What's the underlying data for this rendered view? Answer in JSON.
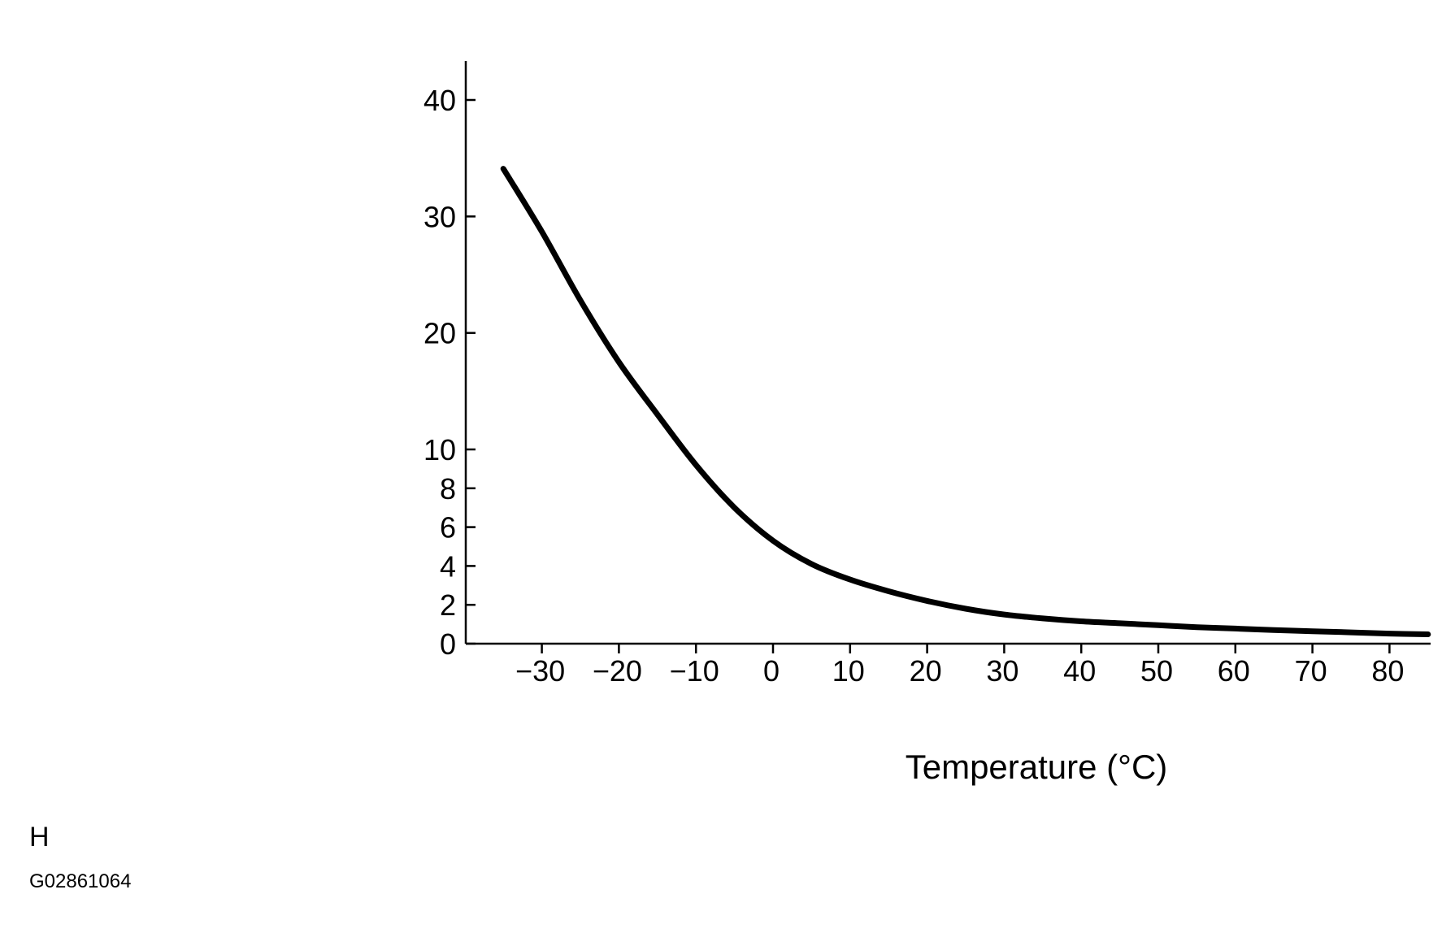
{
  "chart_data": {
    "type": "line",
    "title": "",
    "xlabel": "Temperature (°C)",
    "ylabel": "",
    "x_ticks": [
      -30,
      -20,
      -10,
      0,
      10,
      20,
      30,
      40,
      50,
      60,
      70,
      80
    ],
    "x_tick_labels": [
      "−30",
      "−20",
      "−10",
      "0",
      "10",
      "20",
      "30",
      "40",
      "50",
      "60",
      "70",
      "80"
    ],
    "y_ticks": [
      0,
      2,
      4,
      6,
      8,
      10,
      20,
      30,
      40
    ],
    "y_tick_labels": [
      "0",
      "2",
      "4",
      "6",
      "8",
      "10",
      "20",
      "30",
      "40"
    ],
    "xlim": [
      -40,
      85
    ],
    "ylim": [
      0,
      43
    ],
    "y_scale": "piecewise: linear 0–10 with wider spacing, then linear 10–40",
    "grid": false,
    "series": [
      {
        "x": [
          -35,
          -30,
          -25,
          -20,
          -15,
          -10,
          -5,
          0,
          5,
          10,
          15,
          20,
          25,
          30,
          35,
          40,
          45,
          50,
          55,
          60,
          65,
          70,
          75,
          80,
          85
        ],
        "y": [
          34.1,
          28.7,
          22.8,
          17.5,
          13.0,
          9.2,
          7.0,
          5.3,
          4.1,
          3.3,
          2.7,
          2.2,
          1.8,
          1.5,
          1.3,
          1.15,
          1.05,
          0.95,
          0.85,
          0.78,
          0.7,
          0.64,
          0.58,
          0.52,
          0.48
        ]
      }
    ],
    "colors": {
      "line": "#000000",
      "axis": "#000000",
      "background": "#ffffff"
    }
  },
  "footer": {
    "letter": "H",
    "figure_id": "G02861064"
  }
}
